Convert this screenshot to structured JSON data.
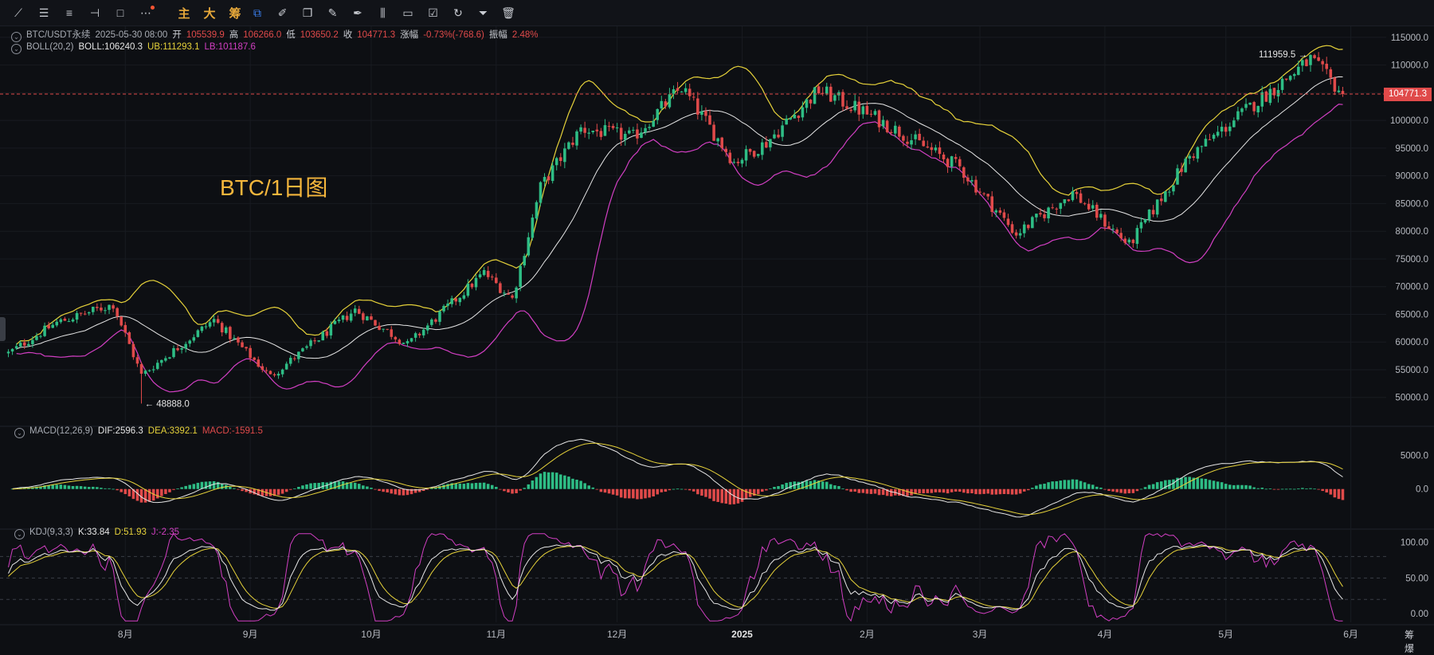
{
  "toolbar": {
    "tools": [
      {
        "icon": "trend-line-icon",
        "glyph": "⟋"
      },
      {
        "icon": "horizontal-lines-icon",
        "glyph": "☰"
      },
      {
        "icon": "parallel-channel-icon",
        "glyph": "≡"
      },
      {
        "icon": "horizontal-ray-icon",
        "glyph": "⊣"
      },
      {
        "icon": "rectangle-icon",
        "glyph": "□"
      },
      {
        "icon": "more-icon",
        "glyph": "⋯"
      }
    ],
    "indicator_buttons": [
      "主",
      "大",
      "筹"
    ],
    "tools2": [
      {
        "icon": "screenshot-icon",
        "glyph": "⧉"
      },
      {
        "icon": "magnet-icon",
        "glyph": "✐"
      },
      {
        "icon": "layers-icon",
        "glyph": "❐"
      },
      {
        "icon": "ruler-icon",
        "glyph": "✎"
      },
      {
        "icon": "pen-icon",
        "glyph": "✒"
      },
      {
        "icon": "compare-icon",
        "glyph": "⫼"
      },
      {
        "icon": "clipboard-icon",
        "glyph": "▭"
      },
      {
        "icon": "edit-list-icon",
        "glyph": "☑"
      },
      {
        "icon": "refresh-icon",
        "glyph": "↻"
      },
      {
        "icon": "filter-icon",
        "glyph": "⏷"
      },
      {
        "icon": "trash-icon",
        "glyph": "🗑"
      }
    ]
  },
  "header": {
    "symbol": "BTC/USDT永续",
    "datetime": "2025-05-30 08:00",
    "open_label": "开",
    "open": "105539.9",
    "high_label": "高",
    "high": "106266.0",
    "low_label": "低",
    "low": "103650.2",
    "close_label": "收",
    "close": "104771.3",
    "change_label": "涨幅",
    "change": "-0.73%(-768.6)",
    "amp_label": "振幅",
    "amp": "2.48%"
  },
  "boll_legend": {
    "name": "BOLL(20,2)",
    "mid": "BOLL:106240.3",
    "ub": "UB:111293.1",
    "lb": "LB:101187.6"
  },
  "macd_legend": {
    "name": "MACD(12,26,9)",
    "dif": "DIF:2596.3",
    "dea": "DEA:3392.1",
    "macd": "MACD:-1591.5"
  },
  "kdj_legend": {
    "name": "KDJ(9,3,3)",
    "k": "K:33.84",
    "d": "D:51.93",
    "j": "J:-2.35"
  },
  "big_title": "BTC/1日图",
  "current_price_tag": "104771.3",
  "corner": [
    "筹",
    "爆"
  ],
  "colors": {
    "up": "#2ebd85",
    "down": "#e04a4a",
    "boll_mid": "#e6e6e6",
    "boll_ub": "#e6d23a",
    "boll_lb": "#d23fc3",
    "dif": "#e6e6e6",
    "dea": "#e6d23a",
    "k": "#e6e6e6",
    "d": "#e6d23a",
    "j": "#d23fc3"
  },
  "chart_data": {
    "type": "candlestick",
    "price_axis": {
      "ticks": [
        "115000.0",
        "110000.0",
        "105000.0",
        "100000.0",
        "95000.0",
        "90000.0",
        "85000.0",
        "80000.0",
        "75000.0",
        "70000.0",
        "65000.0",
        "60000.0",
        "55000.0",
        "50000.0"
      ],
      "range": [
        45500,
        117000
      ]
    },
    "macd_axis": {
      "ticks": [
        "5000.0",
        "0.0"
      ],
      "range": [
        -5500,
        9000
      ]
    },
    "kdj_axis": {
      "ticks": [
        "100.00",
        "50.00",
        "0.00"
      ],
      "range": [
        -12,
        115
      ],
      "dashed_levels": [
        80,
        50,
        20
      ]
    },
    "time_axis": {
      "labels": [
        "8月",
        "9月",
        "10月",
        "11月",
        "12月",
        "2025",
        "2月",
        "3月",
        "4月",
        "5月",
        "6月"
      ],
      "dates": [
        "2024-08-01",
        "2024-09-01",
        "2024-10-01",
        "2024-11-01",
        "2024-12-01",
        "2025-01-01",
        "2025-02-01",
        "2025-03-01",
        "2025-04-01",
        "2025-05-01",
        "2025-06-01"
      ]
    },
    "start_date": "2024-07-03",
    "end_date": "2025-05-30",
    "last_close": 104771.3,
    "annotations": [
      {
        "text": "48888.0",
        "date": "2024-08-05",
        "price": 48888.0,
        "side": "left"
      },
      {
        "text": "111959.5",
        "date": "2025-05-22",
        "price": 111959.5,
        "side": "right"
      }
    ],
    "close_anchors": [
      [
        "2024-07-03",
        58000
      ],
      [
        "2024-07-15",
        63500
      ],
      [
        "2024-07-29",
        66800
      ],
      [
        "2024-08-05",
        54000
      ],
      [
        "2024-08-23",
        64000
      ],
      [
        "2024-09-06",
        53800
      ],
      [
        "2024-09-27",
        65800
      ],
      [
        "2024-10-10",
        59500
      ],
      [
        "2024-10-29",
        72500
      ],
      [
        "2024-11-05",
        67800
      ],
      [
        "2024-11-12",
        88000
      ],
      [
        "2024-11-22",
        98500
      ],
      [
        "2024-12-05",
        97000
      ],
      [
        "2024-12-17",
        106000
      ],
      [
        "2024-12-30",
        92500
      ],
      [
        "2025-01-07",
        96000
      ],
      [
        "2025-01-20",
        105500
      ],
      [
        "2025-02-03",
        100500
      ],
      [
        "2025-02-24",
        91500
      ],
      [
        "2025-03-10",
        79500
      ],
      [
        "2025-03-24",
        87000
      ],
      [
        "2025-04-07",
        77500
      ],
      [
        "2025-04-22",
        93500
      ],
      [
        "2025-05-08",
        103000
      ],
      [
        "2025-05-22",
        111000
      ],
      [
        "2025-05-30",
        104771.3
      ]
    ]
  }
}
